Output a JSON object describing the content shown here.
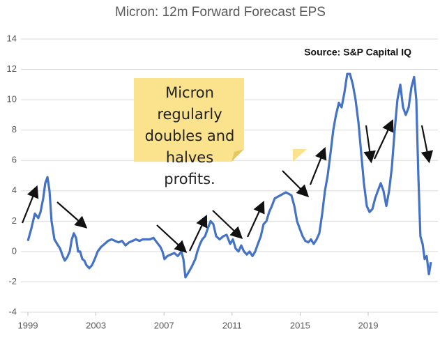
{
  "chart_data": {
    "type": "line",
    "title": "Micron: 12m Forward Forecast EPS",
    "annotations": [
      "Source: S&P Capital IQ",
      "Micron regularly doubles and halves profits."
    ],
    "x": [
      1999.0,
      1999.2,
      1999.41,
      1999.61,
      1999.74,
      1999.9,
      2000.02,
      2000.15,
      2000.27,
      2000.39,
      2000.56,
      2000.72,
      2000.89,
      2001.05,
      2001.17,
      2001.3,
      2001.46,
      2001.58,
      2001.7,
      2001.83,
      2001.95,
      2002.07,
      2002.2,
      2002.32,
      2002.44,
      2002.61,
      2002.77,
      2002.93,
      2003.1,
      2003.3,
      2003.51,
      2003.71,
      2003.92,
      2004.12,
      2004.33,
      2004.53,
      2004.74,
      2004.94,
      2005.15,
      2005.35,
      2005.56,
      2005.76,
      2005.97,
      2006.17,
      2006.38,
      2006.58,
      2006.79,
      2006.91,
      2007.03,
      2007.2,
      2007.4,
      2007.61,
      2007.81,
      2008.02,
      2008.14,
      2008.26,
      2008.43,
      2008.63,
      2008.84,
      2008.96,
      2009.12,
      2009.25,
      2009.41,
      2009.57,
      2009.74,
      2009.9,
      2010.07,
      2010.27,
      2010.48,
      2010.68,
      2010.89,
      2011.05,
      2011.21,
      2011.38,
      2011.54,
      2011.7,
      2011.87,
      2012.03,
      2012.2,
      2012.36,
      2012.52,
      2012.69,
      2012.85,
      2013.02,
      2013.18,
      2013.34,
      2013.51,
      2013.67,
      2013.84,
      2014.0,
      2014.16,
      2014.33,
      2014.49,
      2014.66,
      2014.82,
      2014.98,
      2015.15,
      2015.31,
      2015.48,
      2015.64,
      2015.8,
      2015.97,
      2016.13,
      2016.3,
      2016.46,
      2016.62,
      2016.79,
      2016.95,
      2017.11,
      2017.28,
      2017.44,
      2017.61,
      2017.77,
      2017.93,
      2018.1,
      2018.26,
      2018.43,
      2018.59,
      2018.75,
      2018.92,
      2019.08,
      2019.25,
      2019.41,
      2019.57,
      2019.74,
      2019.9,
      2020.07,
      2020.23,
      2020.39,
      2020.56,
      2020.72,
      2020.89,
      2021.05,
      2021.21,
      2021.38,
      2021.54,
      2021.7,
      2021.83,
      2021.95,
      2022.07,
      2022.2,
      2022.32,
      2022.44,
      2022.57,
      2022.69
    ],
    "series": [
      {
        "name": "12m Forward Forecast EPS",
        "color": "#4472c4",
        "values": [
          0.7,
          1.5,
          2.5,
          2.2,
          2.6,
          3.5,
          4.5,
          4.9,
          4.0,
          2.0,
          0.8,
          0.5,
          0.2,
          -0.3,
          -0.6,
          -0.4,
          0.0,
          0.8,
          1.2,
          0.9,
          0.0,
          0.0,
          -0.5,
          -0.6,
          -0.9,
          -1.1,
          -0.9,
          -0.5,
          0.0,
          0.3,
          0.5,
          0.7,
          0.8,
          0.7,
          0.6,
          0.7,
          0.4,
          0.6,
          0.7,
          0.8,
          0.7,
          0.8,
          0.8,
          0.8,
          0.9,
          0.6,
          0.3,
          0.0,
          -0.5,
          -0.3,
          -0.2,
          -0.1,
          -0.3,
          0.0,
          -0.5,
          -1.7,
          -1.4,
          -1.0,
          -0.5,
          0.0,
          0.5,
          0.8,
          1.0,
          1.5,
          2.0,
          1.8,
          1.0,
          0.8,
          1.0,
          1.1,
          0.5,
          0.8,
          0.2,
          0.0,
          0.4,
          0.0,
          -0.2,
          0.0,
          -0.3,
          0.0,
          0.5,
          1.0,
          1.8,
          2.0,
          2.6,
          3.0,
          3.5,
          3.6,
          3.7,
          3.8,
          3.9,
          3.8,
          3.7,
          3.0,
          2.0,
          1.5,
          1.0,
          0.7,
          0.6,
          0.8,
          0.5,
          0.8,
          1.2,
          2.5,
          4.0,
          5.0,
          6.5,
          8.0,
          9.0,
          9.8,
          9.5,
          10.5,
          11.7,
          11.7,
          11.0,
          10.0,
          8.5,
          6.5,
          4.5,
          3.0,
          2.6,
          2.8,
          3.5,
          4.0,
          4.5,
          4.0,
          3.0,
          4.0,
          5.5,
          8.0,
          10.0,
          11.0,
          9.5,
          9.0,
          9.5,
          10.8,
          11.5,
          10.0,
          5.0,
          1.0,
          0.5,
          -0.5,
          -0.3,
          -1.5,
          -0.7
        ]
      }
    ],
    "xlim": [
      1998.59,
      2023.1
    ],
    "xticks": [
      1999,
      2003,
      2007,
      2011,
      2015,
      2019
    ],
    "ylim": [
      -4,
      14
    ],
    "yticks": [
      -4,
      -2,
      0,
      2,
      4,
      6,
      8,
      10,
      12,
      14
    ],
    "grid": true
  }
}
